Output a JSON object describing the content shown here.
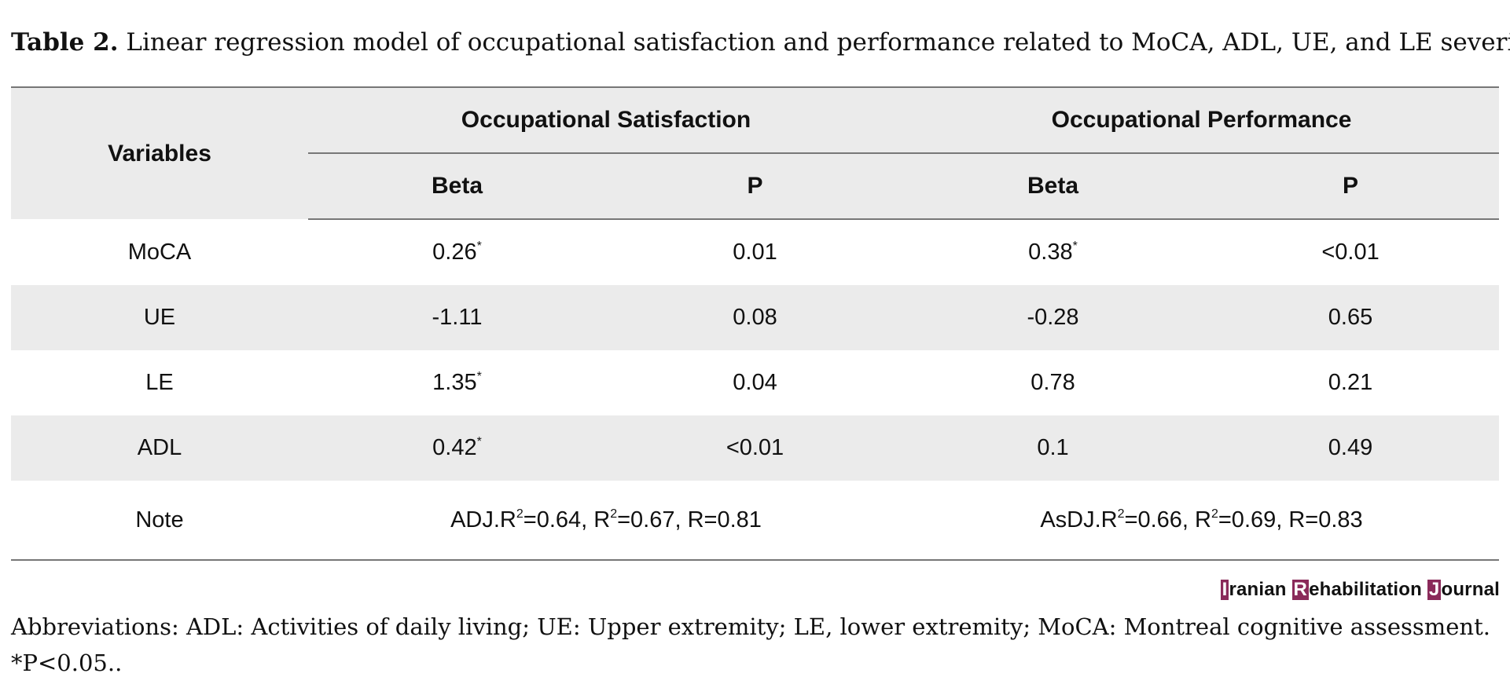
{
  "caption": {
    "label": "Table 2.",
    "text": "Linear regression model of occupational satisfaction and performance related to MoCA, ADL, UE, and LE severity"
  },
  "table": {
    "variables_header": "Variables",
    "groups": [
      "Occupational Satisfaction",
      "Occupational Performance"
    ],
    "subheaders": [
      "Beta",
      "P",
      "Beta",
      "P"
    ],
    "rows": [
      {
        "variable": "MoCA",
        "sat_beta": "0.26",
        "sat_beta_mark": "*",
        "sat_p": "0.01",
        "perf_beta": "0.38",
        "perf_beta_mark": "*",
        "perf_p": "<0.01"
      },
      {
        "variable": "UE",
        "sat_beta": "-1.11",
        "sat_beta_mark": "",
        "sat_p": "0.08",
        "perf_beta": "-0.28",
        "perf_beta_mark": "",
        "perf_p": "0.65"
      },
      {
        "variable": "LE",
        "sat_beta": "1.35",
        "sat_beta_mark": "*",
        "sat_p": "0.04",
        "perf_beta": "0.78",
        "perf_beta_mark": "",
        "perf_p": "0.21"
      },
      {
        "variable": "ADL",
        "sat_beta": "0.42",
        "sat_beta_mark": "*",
        "sat_p": "<0.01",
        "perf_beta": "0.1",
        "perf_beta_mark": "",
        "perf_p": "0.49"
      }
    ],
    "note": {
      "label": "Note",
      "satisfaction": {
        "adj_prefix": "ADJ.R",
        "adj_value": "=0.64, R",
        "r2_value": "=0.67, R=0.81"
      },
      "performance": {
        "adj_prefix": "AsDJ.R",
        "adj_value": "=0.66, R",
        "r2_value": "=0.69, R=0.83"
      },
      "superscript": "2"
    }
  },
  "brand": {
    "i": "I",
    "ranian": "ranian ",
    "r": "R",
    "ehabilitation": "ehabilitation ",
    "j": "J",
    "ournal": "ournal",
    "accent_color": "#8a2a5a"
  },
  "footnote": {
    "abbreviations": "Abbreviations: ADL: Activities of daily living; UE: Upper extremity; LE, lower extremity; MoCA: Montreal cognitive assessment.",
    "significance": "*P<0.05.."
  }
}
